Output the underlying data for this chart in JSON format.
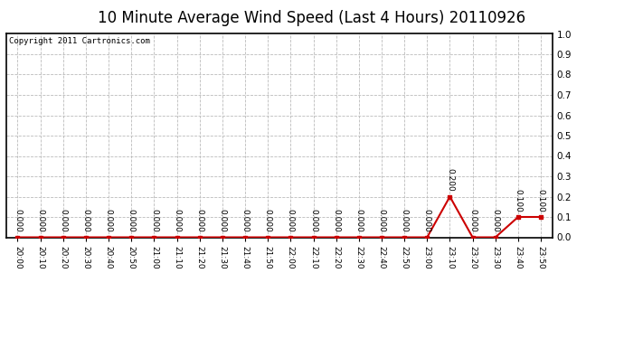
{
  "title": "10 Minute Average Wind Speed (Last 4 Hours) 20110926",
  "copyright": "Copyright 2011 Cartronics.com",
  "x_labels": [
    "20:00",
    "20:10",
    "20:20",
    "20:30",
    "20:40",
    "20:50",
    "21:00",
    "21:10",
    "21:20",
    "21:30",
    "21:40",
    "21:50",
    "22:00",
    "22:10",
    "22:20",
    "22:30",
    "22:40",
    "22:50",
    "23:00",
    "23:10",
    "23:20",
    "23:30",
    "23:40",
    "23:50"
  ],
  "y_values": [
    0.0,
    0.0,
    0.0,
    0.0,
    0.0,
    0.0,
    0.0,
    0.0,
    0.0,
    0.0,
    0.0,
    0.0,
    0.0,
    0.0,
    0.0,
    0.0,
    0.0,
    0.0,
    0.0,
    0.2,
    0.0,
    0.0,
    0.1,
    0.1
  ],
  "line_color": "#cc0000",
  "marker_color": "#cc0000",
  "background_color": "#ffffff",
  "plot_bg_color": "#ffffff",
  "grid_color": "#bbbbbb",
  "ylim": [
    0.0,
    1.0
  ],
  "yticks": [
    0.0,
    0.1,
    0.2,
    0.3,
    0.4,
    0.5,
    0.6,
    0.7,
    0.8,
    0.9,
    1.0
  ],
  "title_fontsize": 12,
  "copyright_fontsize": 6.5,
  "annotation_fontsize": 6.5
}
